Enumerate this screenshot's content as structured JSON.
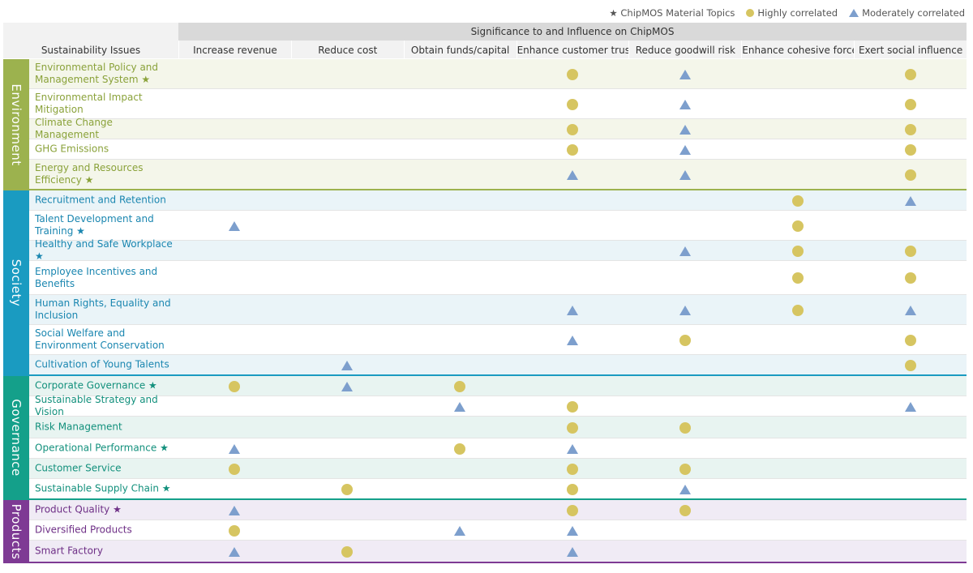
{
  "legend": {
    "material": "★ ChipMOS Material Topics",
    "high": "Highly correlated",
    "moderate": "Moderately correlated"
  },
  "header": {
    "issues": "Sustainability Issues",
    "top": "Significance to and Influence on ChipMOS",
    "columns": [
      "Increase revenue",
      "Reduce cost",
      "Obtain funds/capital",
      "Enhance customer trust",
      "Reduce goodwill risk",
      "Enhance cohesive force",
      "Exert social influence"
    ]
  },
  "colors": {
    "high": "#d6c561",
    "moderate": "#7d9fcd"
  },
  "chart_data": {
    "type": "table",
    "columns": [
      "Increase revenue",
      "Reduce cost",
      "Obtain funds/capital",
      "Enhance customer trust",
      "Reduce goodwill risk",
      "Enhance cohesive force",
      "Exert social influence"
    ],
    "categories": [
      {
        "name": "Environment",
        "color": "#9cb24e",
        "text_color": "#8aa23a",
        "row_bg": "#f4f6ea",
        "rows": [
          {
            "label": "Environmental Policy and Management System ★",
            "marks": [
              null,
              null,
              null,
              "H",
              "M",
              null,
              "H"
            ]
          },
          {
            "label": "Environmental Impact Mitigation",
            "marks": [
              null,
              null,
              null,
              "H",
              "M",
              null,
              "H"
            ]
          },
          {
            "label": "Climate Change Management",
            "marks": [
              null,
              null,
              null,
              "H",
              "M",
              null,
              "H"
            ]
          },
          {
            "label": "GHG Emissions",
            "marks": [
              null,
              null,
              null,
              "H",
              "M",
              null,
              "H"
            ]
          },
          {
            "label": "Energy and Resources Efficiency ★",
            "marks": [
              null,
              null,
              null,
              "M",
              "M",
              null,
              "H"
            ]
          }
        ]
      },
      {
        "name": "Society",
        "color": "#1a9bc1",
        "text_color": "#1a86b0",
        "row_bg": "#eaf4f8",
        "rows": [
          {
            "label": "Recruitment and Retention",
            "marks": [
              null,
              null,
              null,
              null,
              null,
              "H",
              "M"
            ]
          },
          {
            "label": "Talent Development and Training ★",
            "marks": [
              "M",
              null,
              null,
              null,
              null,
              "H",
              null
            ]
          },
          {
            "label": "Healthy and Safe Workplace ★",
            "marks": [
              null,
              null,
              null,
              null,
              "M",
              "H",
              "H"
            ]
          },
          {
            "label": "Employee Incentives and Benefits",
            "marks": [
              null,
              null,
              null,
              null,
              null,
              "H",
              "H"
            ]
          },
          {
            "label": "Human Rights, Equality and Inclusion",
            "marks": [
              null,
              null,
              null,
              "M",
              "M",
              "H",
              "M"
            ]
          },
          {
            "label": "Social Welfare and Environment Conservation",
            "marks": [
              null,
              null,
              null,
              "M",
              "H",
              null,
              "H"
            ]
          },
          {
            "label": "Cultivation of Young Talents",
            "marks": [
              null,
              "M",
              null,
              null,
              null,
              null,
              "H"
            ]
          }
        ]
      },
      {
        "name": "Governance",
        "color": "#14a08a",
        "text_color": "#12907c",
        "row_bg": "#e8f4f1",
        "rows": [
          {
            "label": "Corporate Governance ★",
            "marks": [
              "H",
              "M",
              "H",
              null,
              null,
              null,
              null
            ]
          },
          {
            "label": "Sustainable Strategy and Vision",
            "marks": [
              null,
              null,
              "M",
              "H",
              null,
              null,
              "M"
            ]
          },
          {
            "label": "Risk Management",
            "marks": [
              null,
              null,
              null,
              "H",
              "H",
              null,
              null
            ]
          },
          {
            "label": "Operational Performance ★",
            "marks": [
              "M",
              null,
              "H",
              "M",
              null,
              null,
              null
            ]
          },
          {
            "label": "Customer Service",
            "marks": [
              "H",
              null,
              null,
              "H",
              "H",
              null,
              null
            ]
          },
          {
            "label": "Sustainable Supply Chain ★",
            "marks": [
              null,
              "H",
              null,
              "H",
              "M",
              null,
              null
            ]
          }
        ]
      },
      {
        "name": "Products",
        "color": "#7e3a94",
        "text_color": "#6e2f86",
        "row_bg": "#f0ebf5",
        "rows": [
          {
            "label": "Product Quality ★",
            "marks": [
              "M",
              null,
              null,
              "H",
              "H",
              null,
              null
            ]
          },
          {
            "label": "Diversified Products",
            "marks": [
              "H",
              null,
              "M",
              "M",
              null,
              null,
              null
            ]
          },
          {
            "label": "Smart Factory",
            "marks": [
              "M",
              "H",
              null,
              "M",
              null,
              null,
              null
            ]
          }
        ]
      }
    ]
  }
}
